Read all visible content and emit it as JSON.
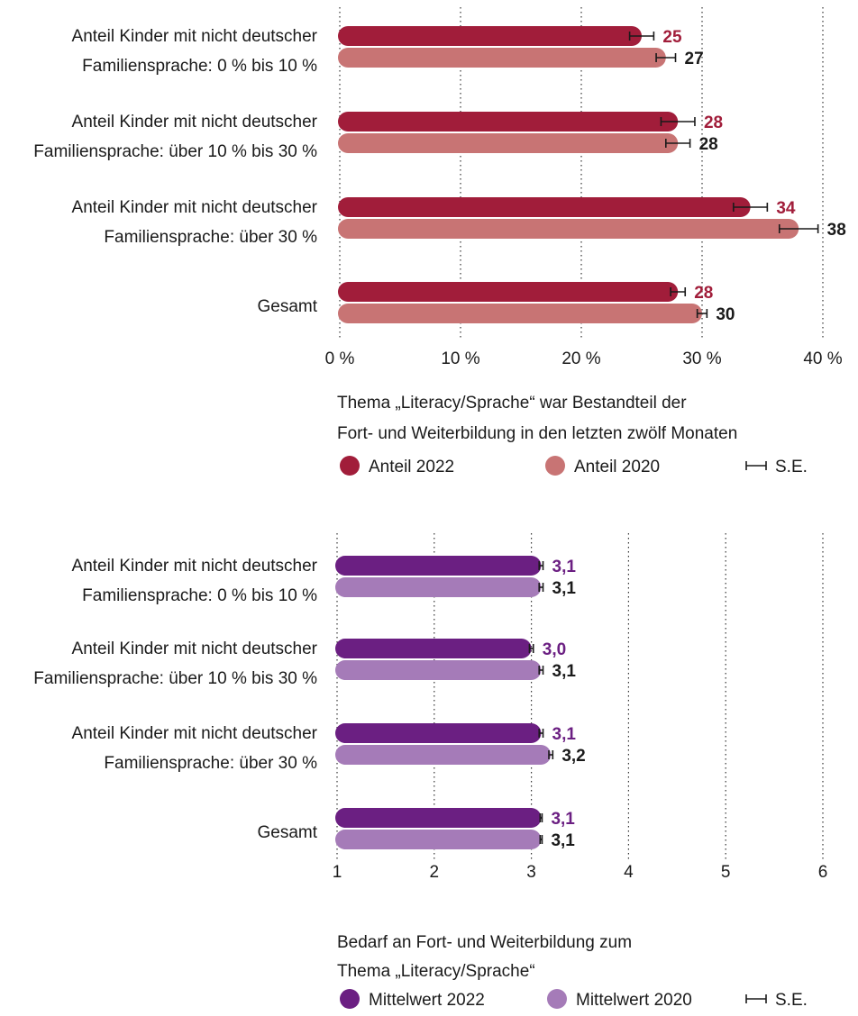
{
  "chart_data": [
    {
      "type": "bar",
      "orientation": "horizontal",
      "categories": [
        [
          "Anteil Kinder mit nicht deutscher",
          "Familiensprache: 0 % bis 10 %"
        ],
        [
          "Anteil Kinder mit nicht deutscher",
          "Familiensprache: über 10 % bis 30 %"
        ],
        [
          "Anteil Kinder mit nicht deutscher",
          "Familiensprache: über 30 %"
        ],
        [
          "Gesamt"
        ]
      ],
      "series": [
        {
          "name": "Anteil 2022",
          "color": "#a11d3a",
          "label_color": "#a11d3a",
          "values": [
            25,
            28,
            34,
            28
          ],
          "se": [
            1.0,
            1.4,
            1.4,
            0.6
          ],
          "labels": [
            "25",
            "28",
            "34",
            "28"
          ]
        },
        {
          "name": "Anteil 2020",
          "color": "#c87474",
          "label_color": "#1a1a1a",
          "values": [
            27,
            28,
            38,
            30
          ],
          "se": [
            0.8,
            1.0,
            1.6,
            0.4
          ],
          "labels": [
            "27",
            "28",
            "38",
            "30"
          ]
        }
      ],
      "xlim": [
        0,
        40
      ],
      "ticks": [
        0,
        10,
        20,
        30,
        40
      ],
      "tick_labels": [
        "0 %",
        "10 %",
        "20 %",
        "30 %",
        "40 %"
      ],
      "grid": "vertical-dotted",
      "caption": [
        "Thema „Literacy/Sprache“ war Bestandteil der",
        "Fort- und Weiterbildung in den letzten zwölf Monaten"
      ],
      "legend": {
        "placement": "bottom",
        "se_label": "S.E."
      }
    },
    {
      "type": "bar",
      "orientation": "horizontal",
      "categories": [
        [
          "Anteil Kinder mit nicht deutscher",
          "Familiensprache: 0 % bis 10 %"
        ],
        [
          "Anteil Kinder mit nicht deutscher",
          "Familiensprache: über 10 % bis 30 %"
        ],
        [
          "Anteil Kinder mit nicht deutscher",
          "Familiensprache: über 30 %"
        ],
        [
          "Gesamt"
        ]
      ],
      "series": [
        {
          "name": "Mittelwert 2022",
          "color": "#6b1f82",
          "label_color": "#6b1f82",
          "values": [
            3.1,
            3.0,
            3.1,
            3.1
          ],
          "se": [
            0.02,
            0.02,
            0.02,
            0.01
          ],
          "labels": [
            "3,1",
            "3,0",
            "3,1",
            "3,1"
          ]
        },
        {
          "name": "Mittelwert 2020",
          "color": "#a57bb8",
          "label_color": "#1a1a1a",
          "values": [
            3.1,
            3.1,
            3.2,
            3.1
          ],
          "se": [
            0.02,
            0.02,
            0.02,
            0.01
          ],
          "labels": [
            "3,1",
            "3,1",
            "3,2",
            "3,1"
          ]
        }
      ],
      "xlim": [
        1,
        6
      ],
      "ticks": [
        1,
        2,
        3,
        4,
        5,
        6
      ],
      "tick_labels": [
        "1",
        "2",
        "3",
        "4",
        "5",
        "6"
      ],
      "grid": "vertical-dotted",
      "caption": [
        "Bedarf an Fort- und Weiterbildung zum",
        "Thema „Literacy/Sprache“"
      ],
      "legend": {
        "placement": "bottom",
        "se_label": "S.E."
      }
    }
  ]
}
